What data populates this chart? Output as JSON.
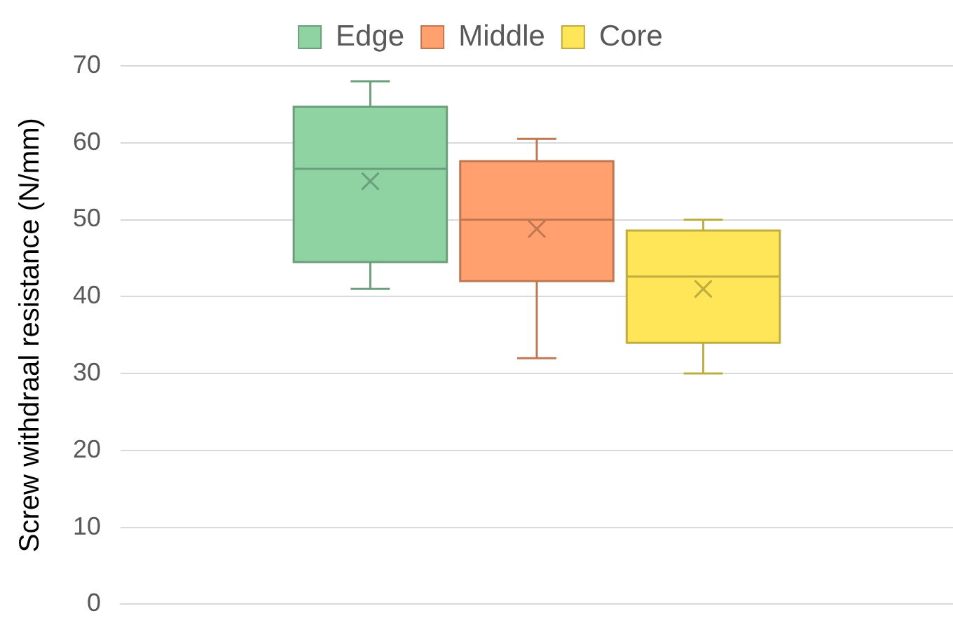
{
  "chart_data": {
    "type": "box",
    "ylabel": "Screw withdraal resistance (N/mm)",
    "categories": [
      null
    ],
    "ylim": [
      0,
      70
    ],
    "yticks": [
      0,
      10,
      20,
      30,
      40,
      50,
      60,
      70
    ],
    "grid": "y",
    "legend": "top",
    "series": [
      {
        "name": "Edge",
        "color": "#8fd3a3",
        "boxes": [
          {
            "low": 41,
            "q1": 44.5,
            "median": 56.6,
            "q3": 64.7,
            "high": 68,
            "mean": 55
          }
        ]
      },
      {
        "name": "Middle",
        "color": "#ffa06e",
        "boxes": [
          {
            "low": 32,
            "q1": 42,
            "median": 50,
            "q3": 57.6,
            "high": 60.5,
            "mean": 48.8
          }
        ]
      },
      {
        "name": "Core",
        "color": "#ffe658",
        "boxes": [
          {
            "low": 30,
            "q1": 34,
            "median": 42.6,
            "q3": 48.6,
            "high": 50,
            "mean": 41
          }
        ]
      }
    ]
  }
}
